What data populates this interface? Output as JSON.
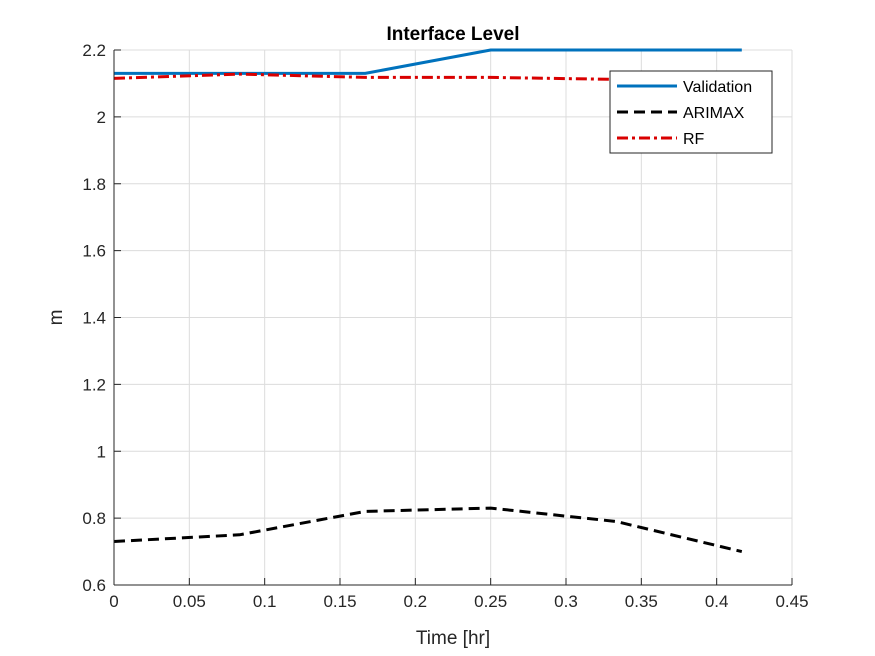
{
  "chart_data": {
    "type": "line",
    "title": "Interface Level",
    "xlabel": "Time [hr]",
    "ylabel": "m",
    "xlim": [
      0,
      0.45
    ],
    "ylim": [
      0.6,
      2.2
    ],
    "xticks": [
      "0",
      "0.05",
      "0.1",
      "0.15",
      "0.2",
      "0.25",
      "0.3",
      "0.35",
      "0.4",
      "0.45"
    ],
    "yticks": [
      "0.6",
      "0.8",
      "1",
      "1.2",
      "1.4",
      "1.6",
      "1.8",
      "2",
      "2.2"
    ],
    "grid": true,
    "legend_position": "top-right",
    "series": [
      {
        "name": "Validation",
        "color": "#0072BD",
        "style": "solid",
        "x": [
          0,
          0.0833,
          0.1667,
          0.25,
          0.3333,
          0.4167
        ],
        "y": [
          2.13,
          2.13,
          2.13,
          2.2,
          2.2,
          2.2
        ]
      },
      {
        "name": "ARIMAX",
        "color": "#000000",
        "style": "dashed",
        "x": [
          0,
          0.0833,
          0.1667,
          0.25,
          0.3333,
          0.4167
        ],
        "y": [
          0.73,
          0.75,
          0.82,
          0.83,
          0.79,
          0.7
        ]
      },
      {
        "name": "RF",
        "color": "#D90000",
        "style": "dashdot",
        "x": [
          0,
          0.0833,
          0.1667,
          0.25,
          0.3333,
          0.4167
        ],
        "y": [
          2.115,
          2.128,
          2.118,
          2.118,
          2.112,
          2.112
        ]
      }
    ]
  }
}
